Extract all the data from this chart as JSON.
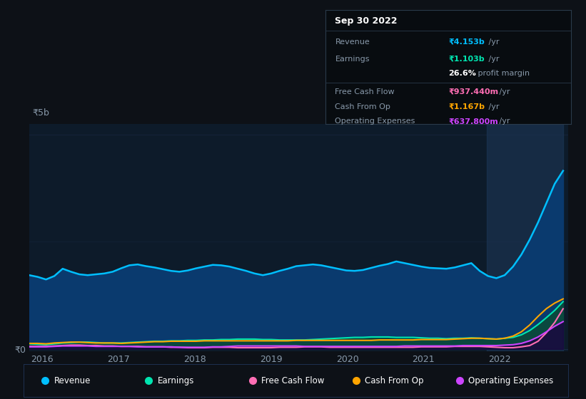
{
  "bg_color": "#0d1117",
  "plot_bg_color": "#0d1b2a",
  "ylabel_5b": "₹5b",
  "ylabel_0": "₹0",
  "years_ticks": [
    2016,
    2017,
    2018,
    2019,
    2020,
    2021,
    2022
  ],
  "revenue_color": "#00bfff",
  "earnings_color": "#00e5b0",
  "free_cash_flow_color": "#ff6eb4",
  "cash_from_op_color": "#ffa500",
  "operating_expenses_color": "#cc44ff",
  "tooltip_bg": "#080c10",
  "tooltip_border": "#2a3a4a",
  "highlight_x_color": "#1e3a5a",
  "legend_bg": "#0d1117",
  "legend_border": "#1e3050",
  "revenue_b": [
    1.72,
    1.68,
    1.62,
    1.7,
    1.87,
    1.8,
    1.74,
    1.72,
    1.74,
    1.76,
    1.8,
    1.88,
    1.95,
    1.97,
    1.93,
    1.9,
    1.86,
    1.82,
    1.8,
    1.83,
    1.88,
    1.92,
    1.96,
    1.95,
    1.92,
    1.87,
    1.82,
    1.76,
    1.72,
    1.76,
    1.82,
    1.87,
    1.93,
    1.95,
    1.97,
    1.95,
    1.91,
    1.87,
    1.83,
    1.82,
    1.84,
    1.89,
    1.94,
    1.98,
    2.04,
    2.0,
    1.96,
    1.92,
    1.89,
    1.88,
    1.87,
    1.9,
    1.95,
    2.0,
    1.82,
    1.7,
    1.65,
    1.72,
    1.92,
    2.2,
    2.55,
    2.95,
    3.4,
    3.85,
    4.153
  ],
  "earnings_b": [
    0.12,
    0.11,
    0.1,
    0.12,
    0.14,
    0.15,
    0.16,
    0.16,
    0.15,
    0.14,
    0.14,
    0.14,
    0.15,
    0.16,
    0.17,
    0.18,
    0.18,
    0.19,
    0.19,
    0.2,
    0.2,
    0.21,
    0.21,
    0.22,
    0.22,
    0.23,
    0.23,
    0.23,
    0.22,
    0.22,
    0.21,
    0.21,
    0.21,
    0.21,
    0.22,
    0.23,
    0.24,
    0.25,
    0.26,
    0.27,
    0.27,
    0.28,
    0.28,
    0.28,
    0.27,
    0.27,
    0.27,
    0.26,
    0.25,
    0.25,
    0.24,
    0.25,
    0.25,
    0.26,
    0.25,
    0.24,
    0.23,
    0.25,
    0.27,
    0.33,
    0.43,
    0.57,
    0.73,
    0.9,
    1.103
  ],
  "free_cash_flow_b": [
    0.06,
    0.06,
    0.06,
    0.07,
    0.08,
    0.09,
    0.09,
    0.08,
    0.08,
    0.07,
    0.07,
    0.06,
    0.06,
    0.06,
    0.05,
    0.05,
    0.05,
    0.04,
    0.04,
    0.03,
    0.03,
    0.03,
    0.04,
    0.04,
    0.04,
    0.03,
    0.03,
    0.03,
    0.03,
    0.03,
    0.04,
    0.04,
    0.04,
    0.05,
    0.05,
    0.05,
    0.04,
    0.04,
    0.04,
    0.04,
    0.04,
    0.04,
    0.04,
    0.04,
    0.04,
    0.04,
    0.04,
    0.05,
    0.05,
    0.05,
    0.05,
    0.06,
    0.06,
    0.06,
    0.06,
    0.05,
    0.04,
    0.03,
    0.03,
    0.05,
    0.08,
    0.18,
    0.38,
    0.62,
    0.937
  ],
  "cash_from_op_b": [
    0.13,
    0.13,
    0.12,
    0.14,
    0.15,
    0.16,
    0.16,
    0.15,
    0.14,
    0.14,
    0.14,
    0.13,
    0.14,
    0.15,
    0.16,
    0.17,
    0.17,
    0.18,
    0.18,
    0.18,
    0.18,
    0.19,
    0.19,
    0.19,
    0.19,
    0.19,
    0.19,
    0.19,
    0.19,
    0.19,
    0.19,
    0.19,
    0.2,
    0.2,
    0.2,
    0.2,
    0.2,
    0.2,
    0.2,
    0.2,
    0.2,
    0.2,
    0.21,
    0.21,
    0.21,
    0.21,
    0.21,
    0.22,
    0.22,
    0.22,
    0.22,
    0.23,
    0.24,
    0.25,
    0.25,
    0.24,
    0.23,
    0.25,
    0.3,
    0.4,
    0.56,
    0.76,
    0.94,
    1.07,
    1.167
  ],
  "operating_expenses_b": [
    0.05,
    0.05,
    0.05,
    0.06,
    0.07,
    0.07,
    0.07,
    0.07,
    0.06,
    0.06,
    0.06,
    0.06,
    0.06,
    0.05,
    0.05,
    0.05,
    0.05,
    0.05,
    0.04,
    0.04,
    0.04,
    0.04,
    0.05,
    0.05,
    0.06,
    0.07,
    0.07,
    0.07,
    0.07,
    0.07,
    0.07,
    0.07,
    0.07,
    0.06,
    0.06,
    0.06,
    0.06,
    0.06,
    0.06,
    0.06,
    0.06,
    0.06,
    0.06,
    0.06,
    0.06,
    0.07,
    0.07,
    0.07,
    0.07,
    0.07,
    0.07,
    0.07,
    0.08,
    0.08,
    0.08,
    0.08,
    0.08,
    0.09,
    0.1,
    0.13,
    0.19,
    0.28,
    0.4,
    0.53,
    0.638
  ],
  "tooltip_title": "Sep 30 2022",
  "tooltip_rows": [
    {
      "label": "Revenue",
      "value": "₹4.153b",
      "suffix": " /yr",
      "color": "#00bfff",
      "separator_after": false
    },
    {
      "label": "Earnings",
      "value": "₹1.103b",
      "suffix": " /yr",
      "color": "#00e5b0",
      "separator_after": false
    },
    {
      "label": "",
      "value": "26.6%",
      "suffix": " profit margin",
      "color": "white",
      "separator_after": true,
      "bold_value": true
    },
    {
      "label": "Free Cash Flow",
      "value": "₹937.440m",
      "suffix": " /yr",
      "color": "#ff6eb4",
      "separator_after": false
    },
    {
      "label": "Cash From Op",
      "value": "₹1.167b",
      "suffix": " /yr",
      "color": "#ffa500",
      "separator_after": false
    },
    {
      "label": "Operating Expenses",
      "value": "₹637.800m",
      "suffix": " /yr",
      "color": "#cc44ff",
      "separator_after": false
    }
  ],
  "legend_items": [
    {
      "label": "Revenue",
      "color": "#00bfff"
    },
    {
      "label": "Earnings",
      "color": "#00e5b0"
    },
    {
      "label": "Free Cash Flow",
      "color": "#ff6eb4"
    },
    {
      "label": "Cash From Op",
      "color": "#ffa500"
    },
    {
      "label": "Operating Expenses",
      "color": "#cc44ff"
    }
  ]
}
